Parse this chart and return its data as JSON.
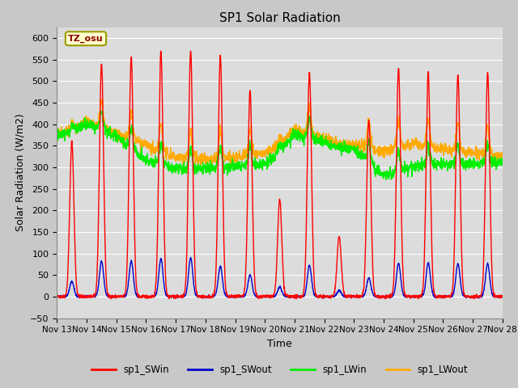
{
  "title": "SP1 Solar Radiation",
  "xlabel": "Time",
  "ylabel": "Solar Radiation (W/m2)",
  "ylim": [
    -50,
    625
  ],
  "yticks": [
    -50,
    0,
    50,
    100,
    150,
    200,
    250,
    300,
    350,
    400,
    450,
    500,
    550,
    600
  ],
  "fig_bg_color": "#c8c8c8",
  "plot_bg_color": "#dcdcdc",
  "grid_color": "#ffffff",
  "colors": {
    "SWin": "#ff0000",
    "SWout": "#0000cc",
    "LWin": "#00ee00",
    "LWout": "#ffaa00"
  },
  "tz_label": "TZ_osu",
  "x_tick_labels": [
    "Nov 13",
    "Nov 14",
    "Nov 15",
    "Nov 16",
    "Nov 17",
    "Nov 18",
    "Nov 19",
    "Nov 20",
    "Nov 21",
    "Nov 22",
    "Nov 23",
    "Nov 24",
    "Nov 25",
    "Nov 26",
    "Nov 27",
    "Nov 28"
  ],
  "line_width": 1.0,
  "legend_labels": [
    "sp1_SWin",
    "sp1_SWout",
    "sp1_LWin",
    "sp1_LWout"
  ],
  "sw_in_peaks": [
    360,
    540,
    555,
    570,
    570,
    560,
    480,
    225,
    520,
    140,
    410,
    530,
    520,
    515,
    520
  ],
  "sw_out_peaks": [
    35,
    82,
    82,
    88,
    90,
    70,
    50,
    22,
    72,
    14,
    43,
    78,
    78,
    76,
    76
  ],
  "lwin_trend": [
    370,
    400,
    370,
    315,
    295,
    295,
    300,
    305,
    375,
    355,
    340,
    280,
    300,
    305,
    305,
    310
  ],
  "lwout_trend": [
    375,
    405,
    375,
    350,
    320,
    315,
    320,
    330,
    385,
    365,
    350,
    335,
    350,
    340,
    330,
    325
  ]
}
